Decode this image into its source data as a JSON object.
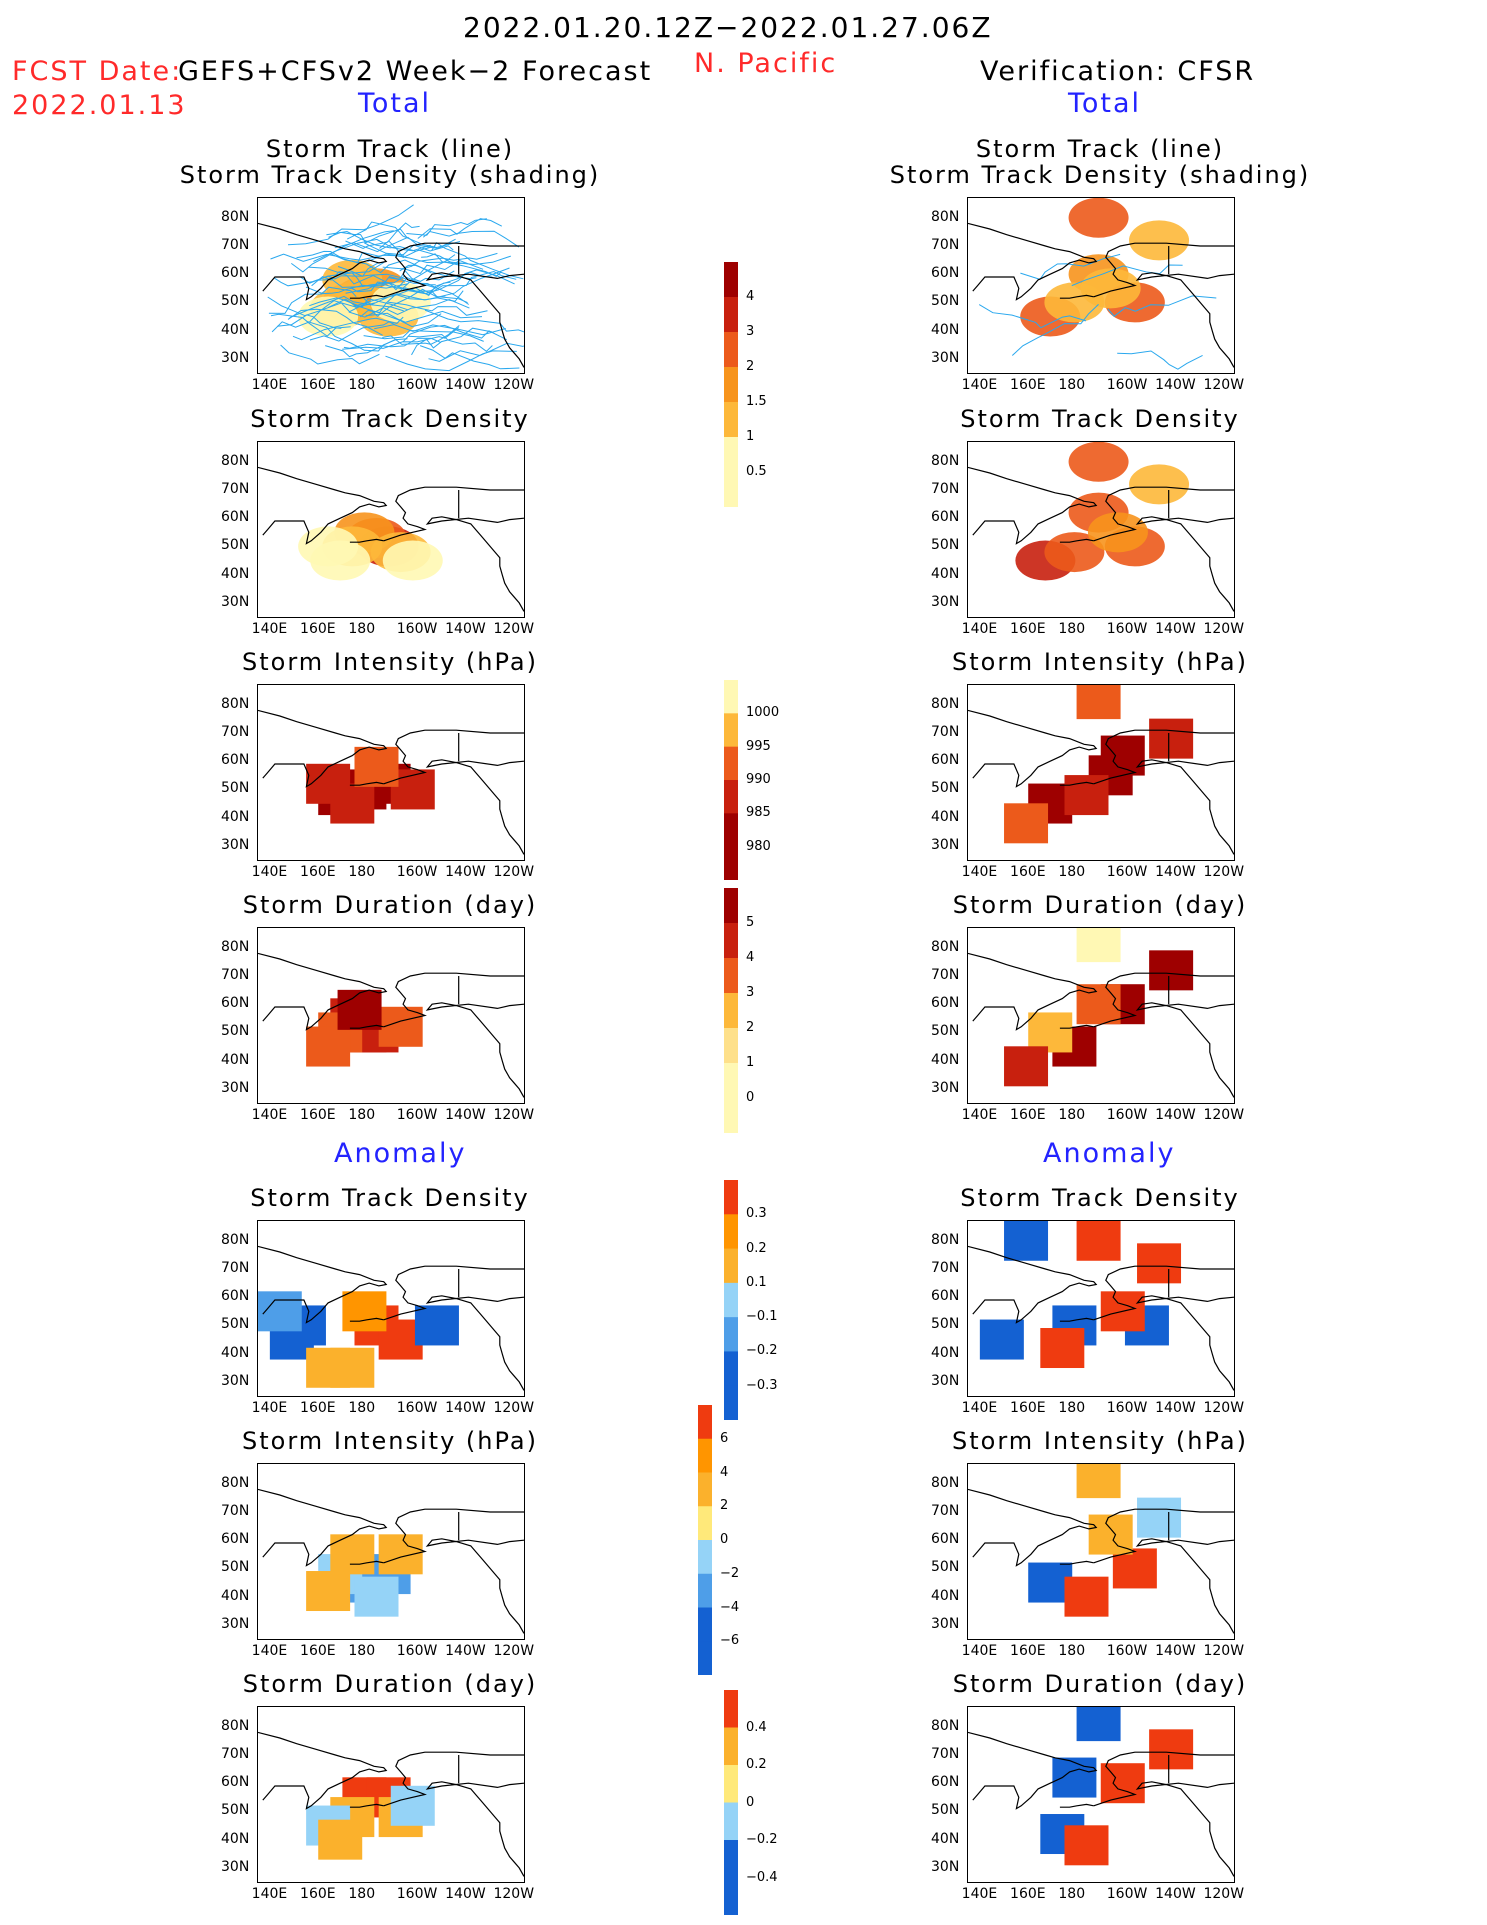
{
  "header": {
    "date_range": "2022.01.20.12Z−2022.01.27.06Z",
    "region": "N. Pacific",
    "fcst_label": "FCST Date:",
    "fcst_model": "GEFS+CFSv2 Week−2 Forecast",
    "fcst_date": "2022.01.13",
    "verification": "Verification: CFSR",
    "left_section_total": "Total",
    "right_section_total": "Total",
    "left_section_anomaly": "Anomaly",
    "right_section_anomaly": "Anomaly"
  },
  "panel_titles": {
    "track_line": "Storm Track (line)",
    "track_density_shading": "Storm Track Density (shading)",
    "track_density": "Storm Track Density",
    "intensity": "Storm Intensity (hPa)",
    "duration": "Storm Duration (day)"
  },
  "axes": {
    "lat_ticks": [
      "80N",
      "70N",
      "60N",
      "50N",
      "40N",
      "30N"
    ],
    "lon_ticks": [
      "140E",
      "160E",
      "180",
      "160W",
      "140W",
      "120W"
    ]
  },
  "colors": {
    "track_line": "#2aa8ee",
    "shades_total": [
      "#fff8b4",
      "#fee08a",
      "#fdb83a",
      "#f7941d",
      "#ec5a1b",
      "#c8200e",
      "#9e0000"
    ],
    "shades_anom_pos": [
      "#ffe97a",
      "#fbb12c",
      "#ff9500",
      "#ef3b10"
    ],
    "shades_anom_neg": [
      "#bfecfb",
      "#95d3f7",
      "#4e9ee8",
      "#1461d2"
    ]
  },
  "colorbars": [
    {
      "name": "track-density-colorbar",
      "labels": [
        "4",
        "3",
        "2",
        "1.5",
        "1",
        "0.5"
      ]
    },
    {
      "name": "intensity-colorbar",
      "labels": [
        "1000",
        "995",
        "990",
        "985",
        "980"
      ]
    },
    {
      "name": "duration-colorbar",
      "labels": [
        "5",
        "4",
        "3",
        "2",
        "1",
        "0"
      ]
    },
    {
      "name": "density-anomaly-colorbar",
      "labels": [
        "0.3",
        "0.2",
        "0.1",
        "−0.1",
        "−0.2",
        "−0.3"
      ]
    },
    {
      "name": "intensity-anomaly-colorbar",
      "labels": [
        "6",
        "4",
        "2",
        "0",
        "−2",
        "−4",
        "−6"
      ]
    },
    {
      "name": "duration-anomaly-colorbar",
      "labels": [
        "0.4",
        "0.2",
        "0",
        "−0.2",
        "−0.4"
      ]
    }
  ],
  "chart_data": [
    {
      "type": "heatmap",
      "panel": "GEFS+CFSv2 Total",
      "title": "Storm Track (line) / Storm Track Density (shading)",
      "colorbar": "track-density-colorbar",
      "cells": [
        [
          180,
          52,
          2
        ],
        [
          175,
          50,
          1.5
        ],
        [
          185,
          55,
          1.5
        ],
        [
          170,
          48,
          1
        ],
        [
          190,
          45,
          1
        ],
        [
          175,
          58,
          1
        ],
        [
          165,
          45,
          0.5
        ],
        [
          195,
          50,
          0.5
        ]
      ]
    },
    {
      "type": "heatmap",
      "panel": "GEFS+CFSv2 Total",
      "title": "Storm Track Density",
      "colorbar": "track-density-colorbar",
      "cells": [
        [
          190,
          50,
          3
        ],
        [
          185,
          53,
          2
        ],
        [
          180,
          55,
          1.5
        ],
        [
          175,
          50,
          1
        ],
        [
          195,
          48,
          1
        ],
        [
          170,
          45,
          0.5
        ],
        [
          200,
          45,
          0.5
        ],
        [
          165,
          50,
          0.5
        ]
      ]
    },
    {
      "type": "heatmap",
      "panel": "GEFS+CFSv2 Total",
      "title": "Storm Intensity (hPa)",
      "colorbar": "intensity-colorbar",
      "cells": [
        [
          180,
          50,
          980
        ],
        [
          170,
          48,
          980
        ],
        [
          190,
          52,
          980
        ],
        [
          175,
          45,
          985
        ],
        [
          200,
          50,
          985
        ],
        [
          165,
          52,
          985
        ],
        [
          185,
          58,
          990
        ]
      ]
    },
    {
      "type": "heatmap",
      "panel": "GEFS+CFSv2 Total",
      "title": "Storm Duration (day)",
      "colorbar": "duration-colorbar",
      "cells": [
        [
          180,
          50,
          4
        ],
        [
          175,
          55,
          4
        ],
        [
          185,
          50,
          4
        ],
        [
          170,
          50,
          3
        ],
        [
          195,
          52,
          3
        ],
        [
          165,
          45,
          3
        ],
        [
          178,
          58,
          5
        ]
      ]
    },
    {
      "type": "heatmap",
      "panel": "GEFS+CFSv2 Anomaly",
      "title": "Storm Track Density",
      "colorbar": "density-anomaly-colorbar",
      "cells": [
        [
          185,
          50,
          0.3
        ],
        [
          195,
          45,
          0.3
        ],
        [
          180,
          55,
          0.2
        ],
        [
          155,
          50,
          -0.3
        ],
        [
          210,
          50,
          -0.3
        ],
        [
          150,
          45,
          -0.3
        ],
        [
          175,
          35,
          0.1
        ],
        [
          165,
          35,
          0.1
        ],
        [
          145,
          55,
          -0.2
        ]
      ]
    },
    {
      "type": "heatmap",
      "panel": "GEFS+CFSv2 Anomaly",
      "title": "Storm Intensity (hPa)",
      "colorbar": "intensity-anomaly-colorbar",
      "cells": [
        [
          180,
          45,
          -4
        ],
        [
          190,
          48,
          -4
        ],
        [
          170,
          48,
          -2
        ],
        [
          175,
          55,
          2
        ],
        [
          195,
          55,
          2
        ],
        [
          165,
          42,
          2
        ],
        [
          185,
          40,
          -2
        ]
      ]
    },
    {
      "type": "heatmap",
      "panel": "GEFS+CFSv2 Anomaly",
      "title": "Storm Duration (day)",
      "colorbar": "duration-anomaly-colorbar",
      "cells": [
        [
          180,
          55,
          0.4
        ],
        [
          190,
          55,
          0.4
        ],
        [
          175,
          48,
          0.2
        ],
        [
          195,
          48,
          0.2
        ],
        [
          165,
          45,
          -0.2
        ],
        [
          200,
          52,
          -0.2
        ],
        [
          170,
          40,
          0.2
        ]
      ]
    },
    {
      "type": "heatmap",
      "panel": "CFSR Total",
      "title": "Storm Track (line) / Storm Track Density (shading)",
      "colorbar": "track-density-colorbar",
      "cells": [
        [
          190,
          80,
          2
        ],
        [
          170,
          45,
          2
        ],
        [
          190,
          60,
          1.5
        ],
        [
          205,
          50,
          2
        ],
        [
          215,
          72,
          1
        ],
        [
          180,
          50,
          1
        ],
        [
          195,
          55,
          1
        ]
      ]
    },
    {
      "type": "heatmap",
      "panel": "CFSR Total",
      "title": "Storm Track Density",
      "colorbar": "track-density-colorbar",
      "cells": [
        [
          190,
          80,
          2
        ],
        [
          168,
          45,
          3
        ],
        [
          190,
          62,
          2
        ],
        [
          205,
          50,
          2
        ],
        [
          215,
          72,
          1
        ],
        [
          180,
          48,
          2
        ],
        [
          198,
          55,
          1.5
        ]
      ]
    },
    {
      "type": "heatmap",
      "panel": "CFSR Total",
      "title": "Storm Intensity (hPa)",
      "colorbar": "intensity-colorbar",
      "cells": [
        [
          190,
          82,
          990
        ],
        [
          200,
          62,
          980
        ],
        [
          170,
          45,
          980
        ],
        [
          195,
          55,
          980
        ],
        [
          185,
          48,
          985
        ],
        [
          220,
          68,
          985
        ],
        [
          160,
          38,
          990
        ]
      ]
    },
    {
      "type": "heatmap",
      "panel": "CFSR Total",
      "title": "Storm Duration (day)",
      "colorbar": "duration-colorbar",
      "cells": [
        [
          190,
          82,
          0.5
        ],
        [
          200,
          60,
          5
        ],
        [
          180,
          45,
          5
        ],
        [
          220,
          72,
          5
        ],
        [
          170,
          50,
          2
        ],
        [
          190,
          60,
          3
        ],
        [
          160,
          38,
          4
        ]
      ]
    },
    {
      "type": "heatmap",
      "panel": "CFSR Anomaly",
      "title": "Storm Track Density",
      "colorbar": "density-anomaly-colorbar",
      "cells": [
        [
          180,
          50,
          -0.3
        ],
        [
          210,
          50,
          -0.3
        ],
        [
          160,
          80,
          -0.3
        ],
        [
          190,
          80,
          0.3
        ],
        [
          175,
          42,
          0.3
        ],
        [
          200,
          55,
          0.3
        ],
        [
          215,
          72,
          0.3
        ],
        [
          150,
          45,
          -0.3
        ]
      ]
    },
    {
      "type": "heatmap",
      "panel": "CFSR Anomaly",
      "title": "Storm Intensity (hPa)",
      "colorbar": "intensity-anomaly-colorbar",
      "cells": [
        [
          190,
          82,
          2
        ],
        [
          170,
          45,
          -6
        ],
        [
          205,
          50,
          6
        ],
        [
          185,
          40,
          6
        ],
        [
          195,
          62,
          2
        ],
        [
          215,
          68,
          -2
        ]
      ]
    },
    {
      "type": "heatmap",
      "panel": "CFSR Anomaly",
      "title": "Storm Duration (day)",
      "colorbar": "duration-anomaly-colorbar",
      "cells": [
        [
          190,
          82,
          -0.4
        ],
        [
          200,
          60,
          0.4
        ],
        [
          175,
          42,
          -0.4
        ],
        [
          185,
          38,
          0.4
        ],
        [
          220,
          72,
          0.4
        ],
        [
          180,
          62,
          -0.4
        ]
      ]
    }
  ]
}
